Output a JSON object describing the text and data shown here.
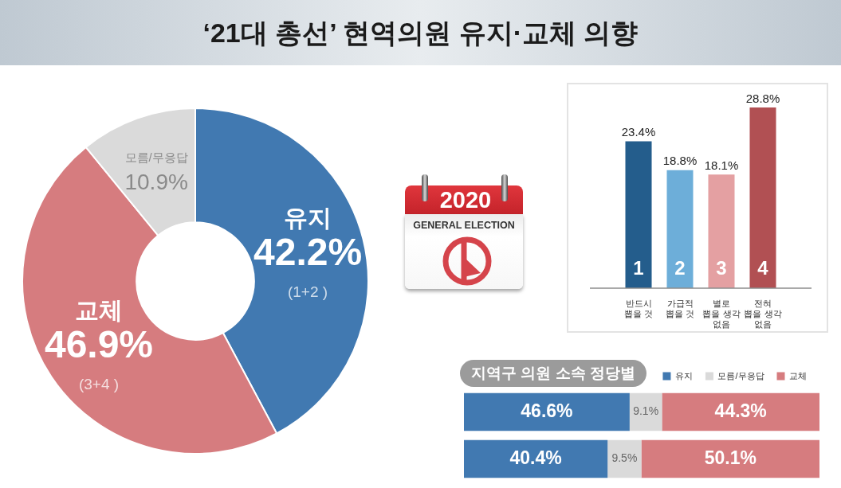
{
  "chart_data": [
    {
      "type": "donut",
      "title": "‘21대 총선’ 현역의원 유지·교체 의향",
      "categories": [
        "유지",
        "교체",
        "모름/무응답"
      ],
      "values": [
        42.2,
        46.9,
        10.9
      ],
      "colors": [
        "#4179b1",
        "#d67c7f",
        "#dadada"
      ],
      "value_labels": [
        "42.2%",
        "46.9%",
        "10.9%"
      ],
      "annotations": [
        {
          "text": "(1+2 )",
          "x": "유지"
        },
        {
          "text": "(3+4 )",
          "x": "교체"
        },
        "2020",
        "GENERAL ELECTION"
      ]
    },
    {
      "type": "bar",
      "categories": [
        "반드시\n뽑을 것",
        "가급적\n뽑을 것",
        "별로\n뽑을 생각\n없음",
        "전혀\n뽑을 생각\n없음"
      ],
      "values": [
        23.4,
        18.8,
        18.1,
        28.8
      ],
      "colors": [
        "#245d8c",
        "#6daed9",
        "#e4a0a2",
        "#b15053"
      ],
      "value_labels": [
        "23.4%",
        "18.8%",
        "18.1%",
        "28.8%"
      ],
      "annotations": [
        "1",
        "2",
        "3",
        "4"
      ]
    },
    {
      "type": "bar",
      "orientation": "horizontal",
      "stacked": true,
      "title": "지역구 의원 소속 정당별",
      "categories": [
        null,
        null
      ],
      "series": [
        {
          "name": "유지",
          "color": "#4179b1",
          "values": [
            46.6,
            40.4
          ],
          "value_labels": [
            "46.6%",
            "40.4%"
          ]
        },
        {
          "name": "모름/무응답",
          "color": "#dadada",
          "values": [
            9.1,
            9.5
          ],
          "value_labels": [
            "9.1%",
            "9.5%"
          ]
        },
        {
          "name": "교체",
          "color": "#d67c7f",
          "values": [
            44.3,
            50.1
          ],
          "value_labels": [
            "44.3%",
            "50.1%"
          ]
        }
      ],
      "legend": "top right"
    }
  ]
}
